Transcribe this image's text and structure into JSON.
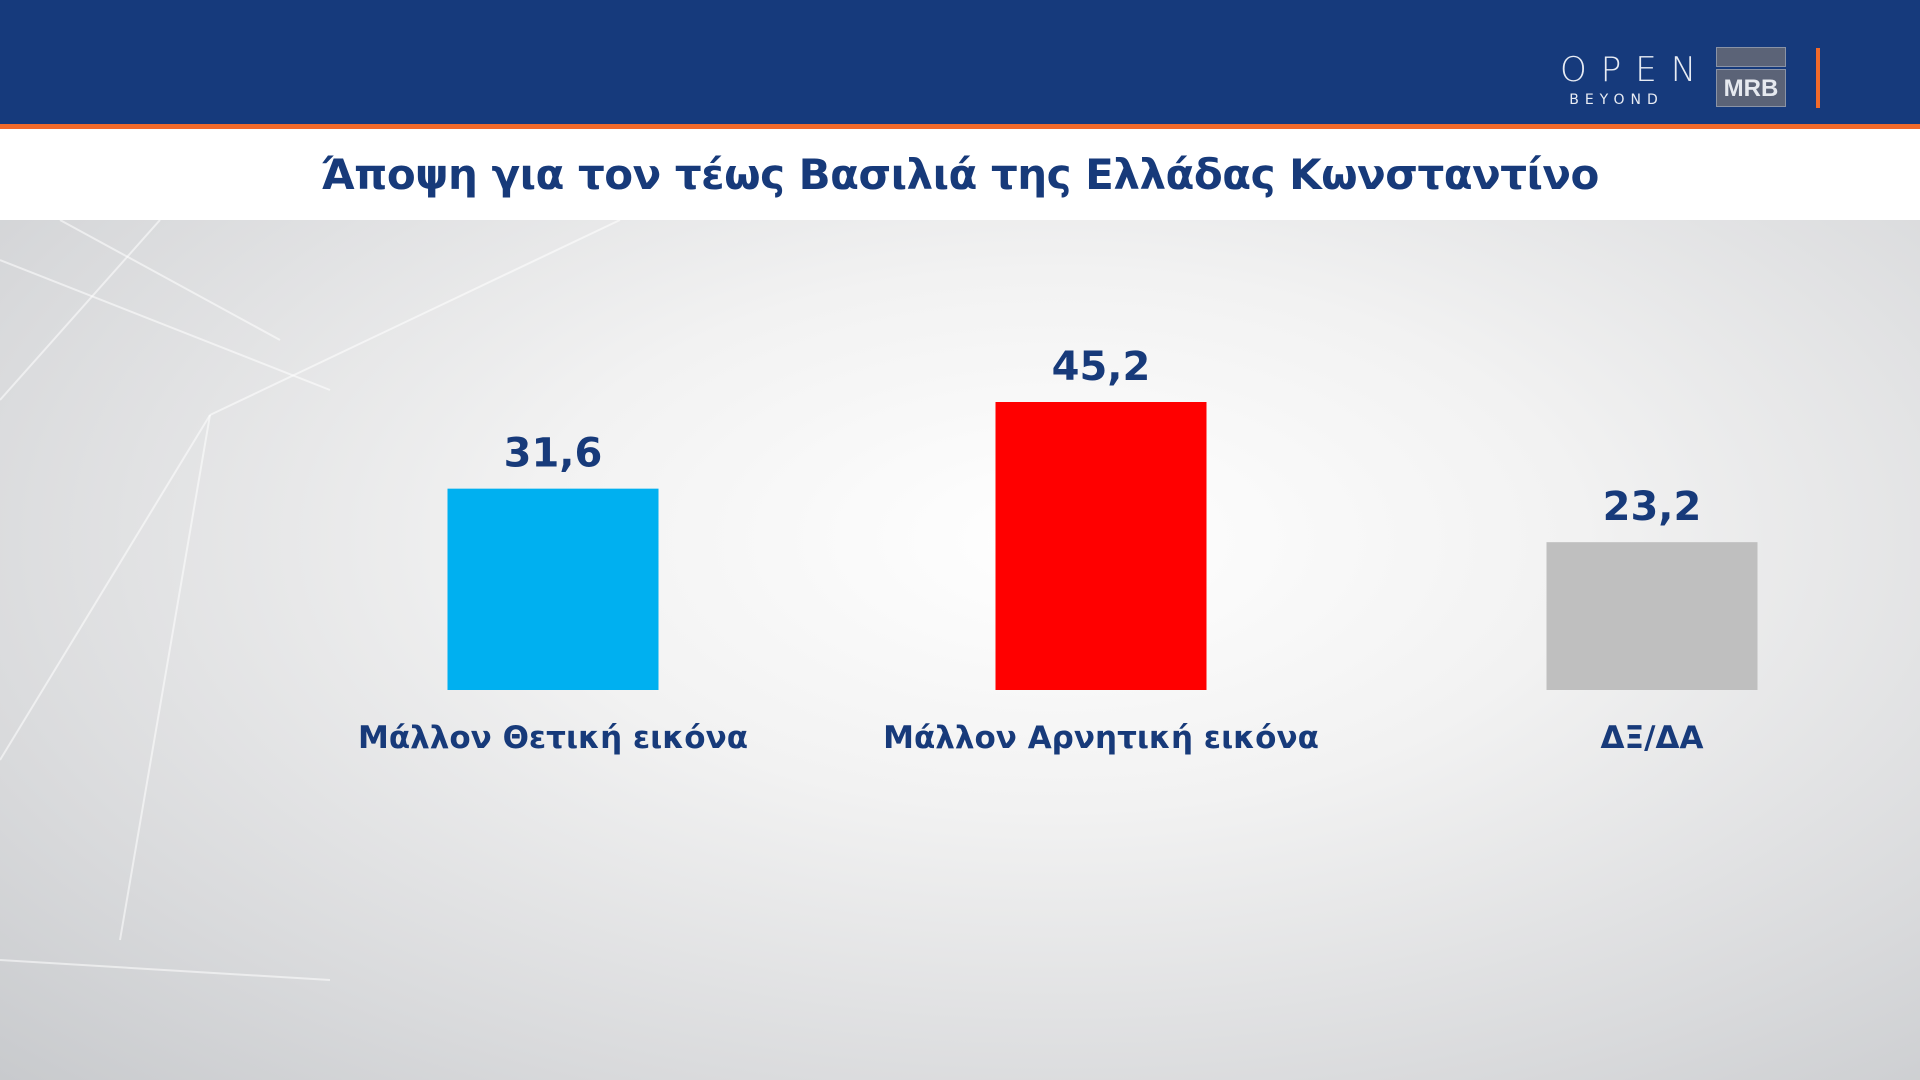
{
  "header": {
    "logo_open": "OPEN",
    "logo_open_sub": "BEYOND",
    "logo_mrb": "MRB"
  },
  "chart_data": {
    "type": "bar",
    "title": "Άποψη για τον τέως Βασιλιά της Ελλάδας Κωνσταντίνο",
    "categories": [
      "Μάλλον Θετική εικόνα",
      "Μάλλον Αρνητική εικόνα",
      "ΔΞ/ΔΑ"
    ],
    "values": [
      31.6,
      45.2,
      23.2
    ],
    "value_labels": [
      "31,6",
      "45,2",
      "23,2"
    ],
    "colors": [
      "#00b0f0",
      "#ff0000",
      "#bfbfbf"
    ],
    "xlabel": "",
    "ylabel": "",
    "ylim": [
      0,
      45.2
    ],
    "grid": false,
    "legend": "none"
  }
}
